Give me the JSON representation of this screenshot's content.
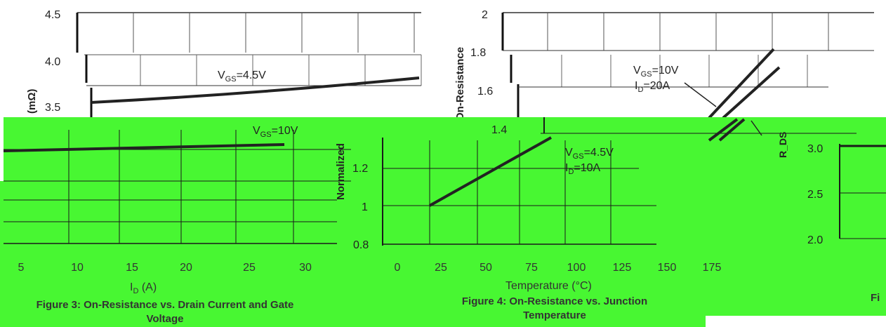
{
  "colors": {
    "accent_green": "#48f732",
    "line": "#222222",
    "grid": "#333333"
  },
  "chart_data": [
    {
      "type": "line",
      "title": "",
      "xlabel": "I_D (A)",
      "ylabel": "R_DS(ON) (mΩ)",
      "xlim": [
        0,
        30
      ],
      "ylim": [
        3.0,
        4.5
      ],
      "yticks": [
        "3.5",
        "4.0",
        "4.5"
      ],
      "xticks": [
        "5",
        "10",
        "15",
        "20",
        "25",
        "30"
      ],
      "series": [
        {
          "name": "V_GS=4.5V",
          "x": [
            0,
            30
          ],
          "y": [
            3.52,
            3.8
          ]
        },
        {
          "name": "V_GS=10V",
          "x": [
            0,
            30
          ],
          "y": [
            3.05,
            3.15
          ]
        }
      ],
      "annotations": [
        "VGS=4.5V",
        "VGS=10V"
      ]
    },
    {
      "type": "line",
      "title": "",
      "xlabel": "Temperature (°C)",
      "ylabel": "Normalized On-Resistance",
      "xlim": [
        0,
        175
      ],
      "ylim": [
        0.8,
        2.0
      ],
      "yticks": [
        "0.8",
        "1",
        "1.2",
        "1.4",
        "1.6",
        "1.8",
        "2"
      ],
      "xticks": [
        "0",
        "25",
        "50",
        "75",
        "100",
        "125",
        "150",
        "175"
      ],
      "series": [
        {
          "name": "V_GS=10V, I_D=20A",
          "x": [
            25,
            175
          ],
          "y": [
            1.0,
            1.8
          ]
        },
        {
          "name": "V_GS=4.5V, I_D=10A",
          "x": [
            25,
            175
          ],
          "y": [
            1.0,
            1.72
          ]
        }
      ],
      "annotations": [
        "VGS=10V",
        "ID=20A",
        "VGS=4.5V",
        "ID=10A"
      ]
    },
    {
      "type": "line",
      "title": "",
      "xlabel": "",
      "ylabel": "R_DS",
      "ylim": [
        2.0,
        3.0
      ],
      "yticks": [
        "2.0",
        "2.5",
        "3.0"
      ],
      "series": []
    }
  ],
  "captions": {
    "fig3_line1": "Figure 3: On-Resistance vs. Drain Current and Gate",
    "fig3_line2": "Voltage",
    "fig4_line1": "Figure 4: On-Resistance vs. Junction",
    "fig4_line2": "Temperature",
    "fig5_fragment": "Fi"
  }
}
